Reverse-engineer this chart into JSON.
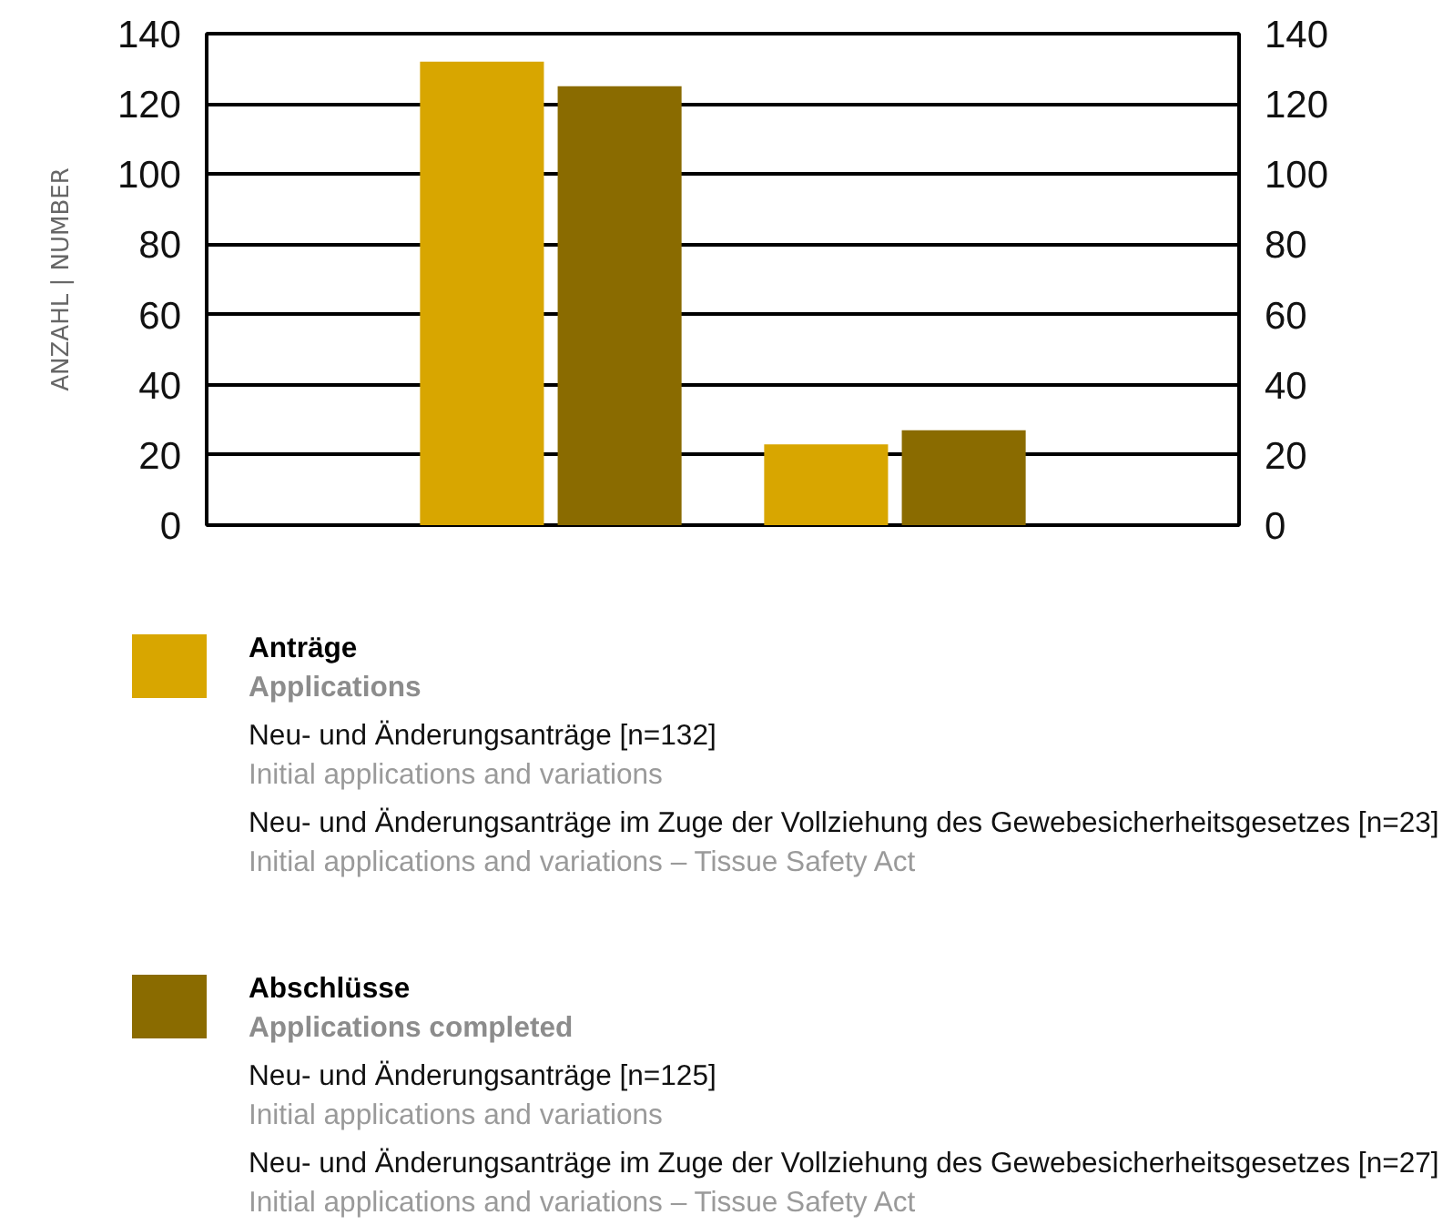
{
  "chart_data": {
    "type": "bar",
    "ylabel": "ANZAHL | NUMBER",
    "categories": [
      null,
      null
    ],
    "series": [
      {
        "name": "Anträge",
        "color": "#d8a600",
        "values": [
          132,
          23
        ]
      },
      {
        "name": "Abschlüsse",
        "color": "#8a6b00",
        "values": [
          125,
          27
        ]
      }
    ],
    "ylim": [
      0,
      140
    ],
    "yticks": [
      0,
      20,
      40,
      60,
      80,
      100,
      120,
      140
    ],
    "y2lim": [
      0,
      140
    ],
    "y2ticks": [
      0,
      20,
      40,
      60,
      80,
      100,
      120,
      140
    ],
    "grid": "y",
    "legend": "bottom",
    "annotations": [
      "Applications",
      "Neu- und Änderungsanträge [n=132]",
      "Initial applications and variations",
      "Neu- und Änderungsanträge im Zuge der Vollziehung des Gewebesicherheitsgesetzes [n=23]",
      "Initial applications and variations – Tissue Safety Act",
      "Applications completed",
      "Neu- und Änderungsanträge [n=125]",
      "Initial applications and variations",
      "Neu- und Änderungsanträge im Zuge der Vollziehung des Gewebesicherheitsgesetzes [n=27]",
      "Initial applications and variations – Tissue Safety Act"
    ]
  }
}
